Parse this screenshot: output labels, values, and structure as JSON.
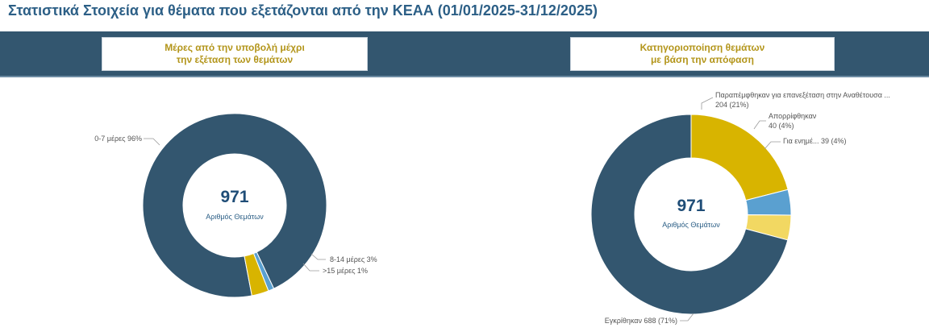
{
  "page": {
    "title": "Στατιστικά Στοιχεία για θέματα που εξετάζονται από την ΚΕΑΑ (01/01/2025-31/12/2025)"
  },
  "colors": {
    "navy": "#33566f",
    "gold": "#d8b400",
    "blue": "#5aa0d0",
    "yellow": "#f2d862",
    "title_blue": "#2c5f86",
    "panel_title_gold": "#b3951a"
  },
  "chart_data": [
    {
      "type": "pie",
      "title_line1": "Μέρες από την υποβολή μέχρι",
      "title_line2": "την εξέταση των θεμάτων",
      "center_value": "971",
      "center_label": "Αριθμός Θεμάτων",
      "slices": [
        {
          "label": "0-7 μέρες 96%",
          "value": 96,
          "color": "#33566f"
        },
        {
          "label": "8-14 μέρες 3%",
          "value": 3,
          "color": "#d8b400"
        },
        {
          "label": ">15 μέρες 1%",
          "value": 1,
          "color": "#5aa0d0"
        }
      ]
    },
    {
      "type": "pie",
      "title_line1": "Κατηγοριοποίηση θεμάτων",
      "title_line2": "με βάση την απόφαση",
      "center_value": "971",
      "center_label": "Αριθμός Θεμάτων",
      "slices": [
        {
          "label_line1": "Παραπέμφθηκαν για επανεξέταση στην Αναθέτουσα ...",
          "label_line2": "204 (21%)",
          "value": 204,
          "color": "#d8b400"
        },
        {
          "label_line1": "Απορρίφθηκαν",
          "label_line2": "40 (4%)",
          "value": 40,
          "color": "#5aa0d0"
        },
        {
          "label_line1": "Για ενημέ... 39 (4%)",
          "label_line2": "",
          "value": 39,
          "color": "#f2d862"
        },
        {
          "label_line1": "Εγκρίθηκαν 688 (71%)",
          "label_line2": "",
          "value": 688,
          "color": "#33566f"
        }
      ]
    }
  ]
}
